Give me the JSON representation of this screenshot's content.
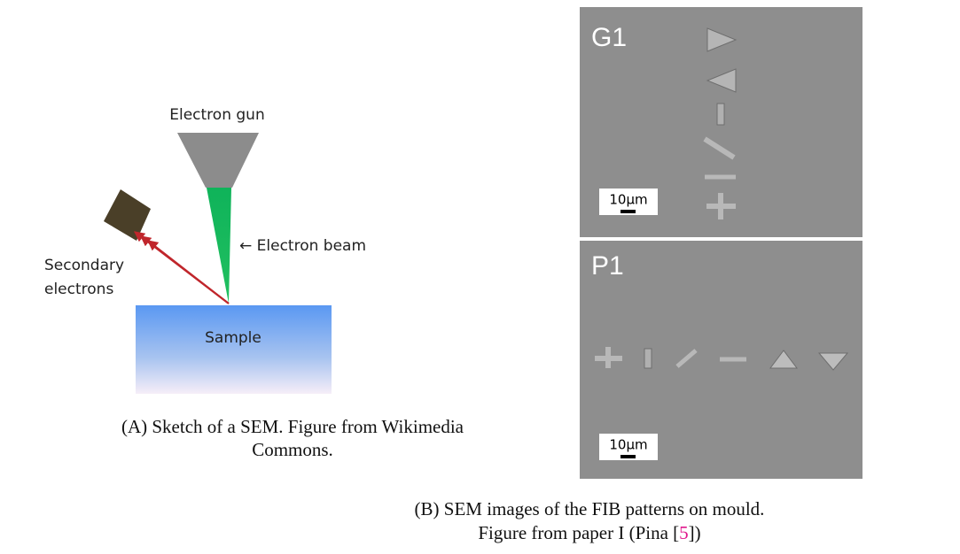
{
  "diagram": {
    "gun_label": "Electron gun",
    "beam_label": "← Electron beam",
    "secondary_label": [
      "Secondary",
      "electrons"
    ],
    "sample_label": "Sample"
  },
  "caption_a": {
    "label": "(A)",
    "lines": [
      "Sketch of a SEM. Figure from Wikimedia",
      "Commons."
    ]
  },
  "panels": [
    {
      "label": "G1",
      "scale": "10μm"
    },
    {
      "label": "P1",
      "scale": "10μm"
    }
  ],
  "caption_b": {
    "label": "(B)",
    "line1": "SEM images of the FIB patterns on mould.",
    "line2_start": "Figure from paper I (Pina [",
    "ref": "5",
    "line2_end": "])"
  }
}
